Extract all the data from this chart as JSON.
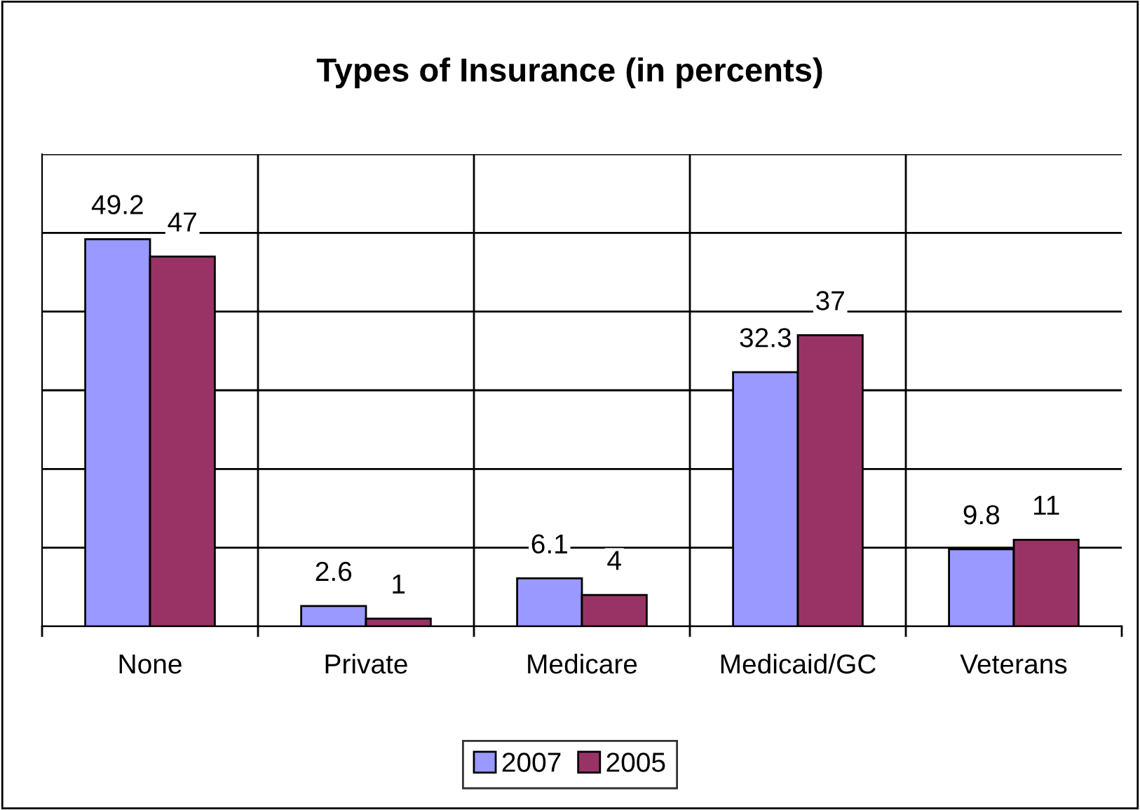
{
  "chart_data": {
    "type": "bar",
    "title": "Types of Insurance (in percents)",
    "categories": [
      "None",
      "Private",
      "Medicare",
      "Medicaid/GC",
      "Veterans"
    ],
    "series": [
      {
        "name": "2007",
        "color": "#9999ff",
        "values": [
          49.2,
          2.6,
          6.1,
          32.3,
          9.8
        ]
      },
      {
        "name": "2005",
        "color": "#993366",
        "values": [
          47,
          1,
          4,
          37,
          11
        ]
      }
    ],
    "ylim": [
      0,
      60
    ],
    "yticks": [
      {
        "value": 0,
        "label": null
      },
      {
        "value": 10,
        "label": null
      },
      {
        "value": 20,
        "label": null
      },
      {
        "value": 30,
        "label": null
      },
      {
        "value": 40,
        "label": null
      },
      {
        "value": 50,
        "label": null
      },
      {
        "value": 60,
        "label": null
      }
    ],
    "grid": true,
    "legend": "bottom",
    "data_labels": true,
    "tick_labels": "x"
  }
}
